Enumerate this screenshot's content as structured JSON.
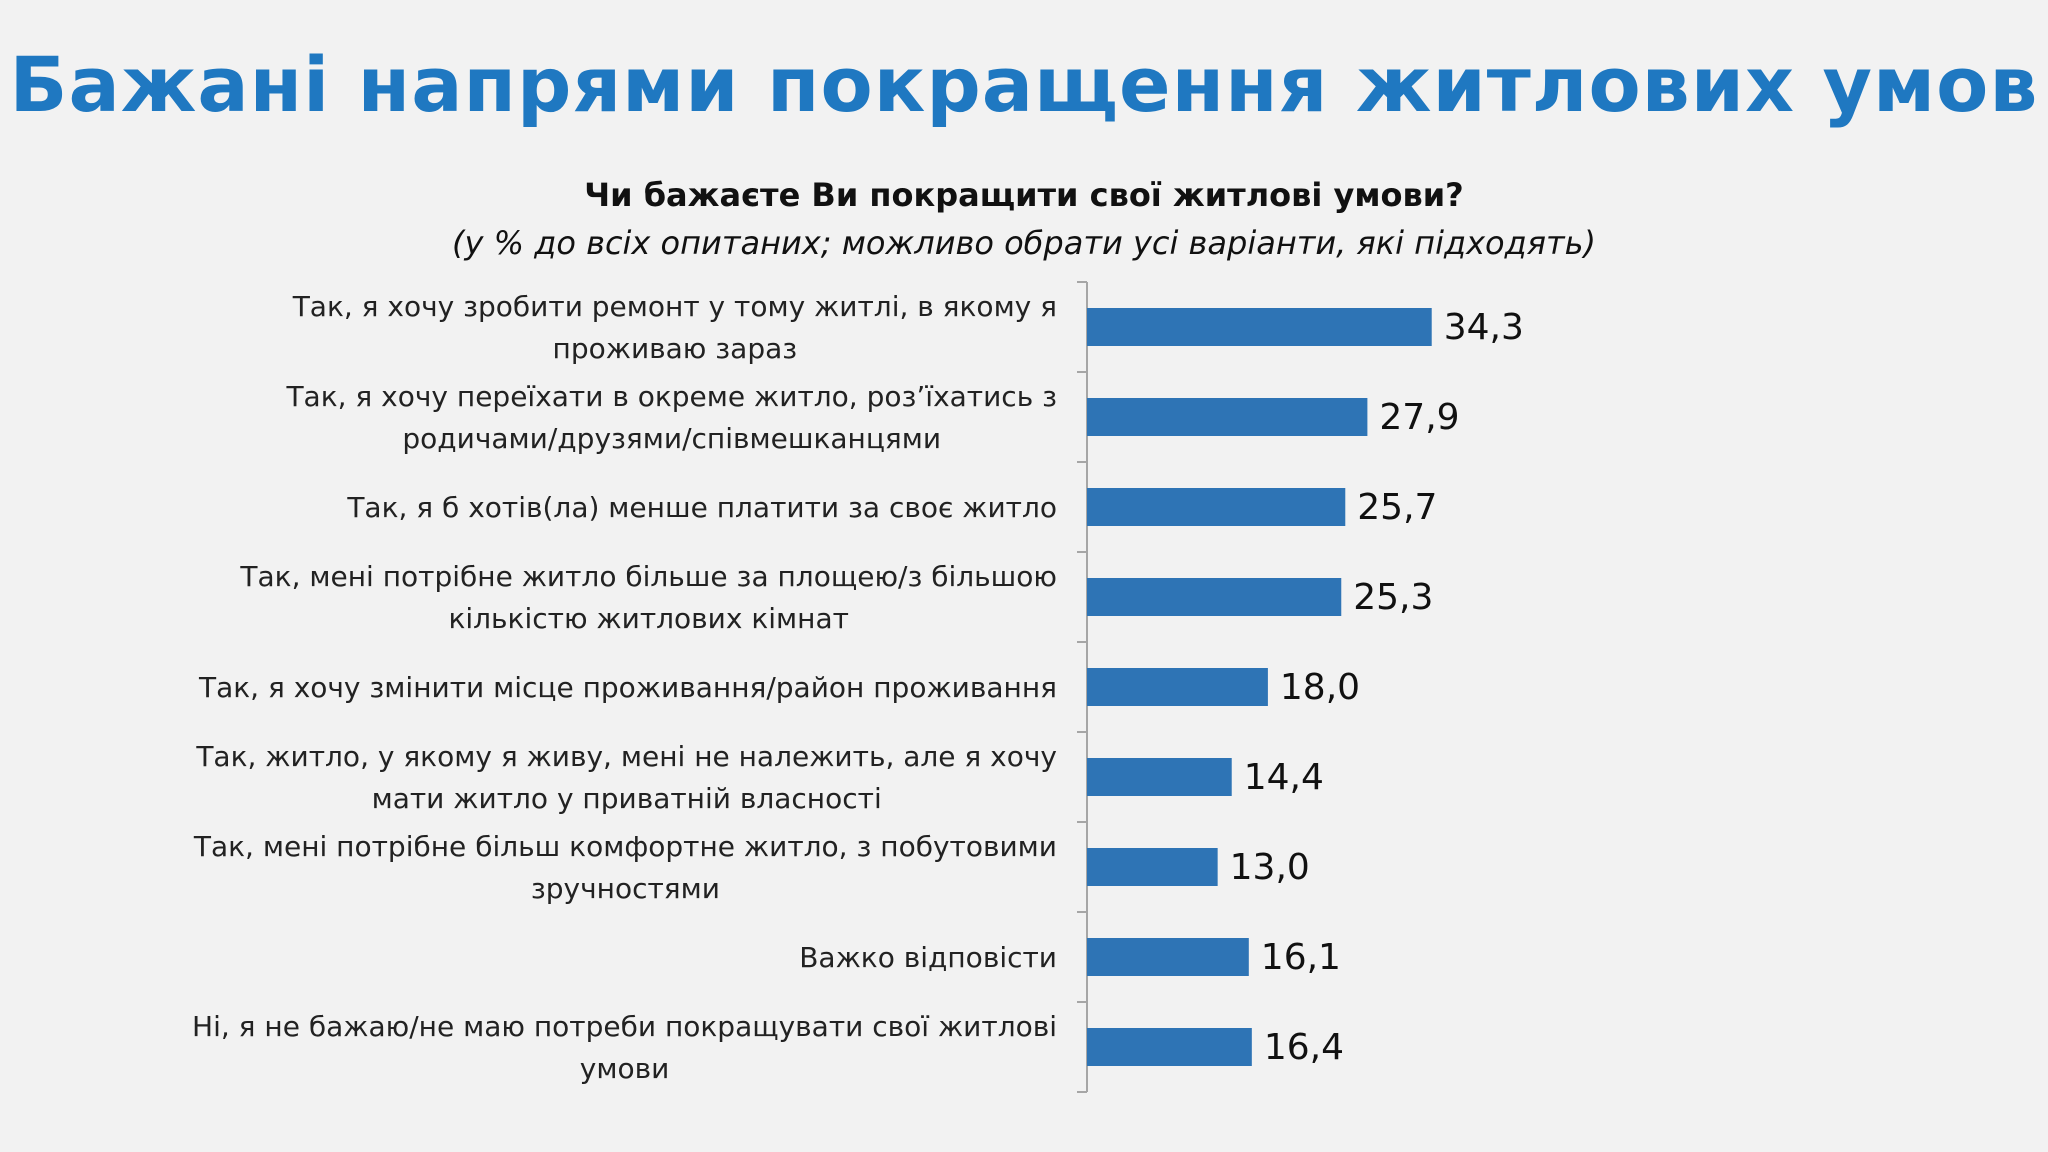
{
  "slide": {
    "title": "Бажані напрями покращення житлових умов"
  },
  "colors": {
    "title": "#1f78c1",
    "bar": "#2e74b5",
    "axis": "#a6a6a6"
  },
  "chart_data": {
    "type": "bar",
    "orientation": "horizontal",
    "title": "Чи бажаєте Ви покращити свої житлові умови?",
    "subtitle": "(у % до всіх опитаних; можливо обрати усі варіанти, які підходять)",
    "xlabel": "",
    "ylabel": "",
    "xlim": [
      0,
      40
    ],
    "grid": false,
    "categories": [
      [
        "Так, я хочу зробити ремонт у тому житлі, в якому я",
        "проживаю зараз"
      ],
      [
        "Так, я хочу переїхати в окреме житло, роз’їхатись з",
        "родичами/друзями/співмешканцями"
      ],
      [
        "Так, я б хотів(ла) менше платити за своє житло"
      ],
      [
        "Так, мені потрібне житло більше за площею/з більшою",
        "кількістю житлових кімнат"
      ],
      [
        "Так, я хочу змінити місце проживання/район проживання"
      ],
      [
        "Так, житло, у якому я живу, мені не належить, але я хочу",
        "мати житло у приватній власності"
      ],
      [
        "Так, мені потрібне більш комфортне житло, з побутовими",
        "зручностями"
      ],
      [
        "Важко відповісти"
      ],
      [
        "Ні, я не бажаю/не маю потреби покращувати свої житлові",
        "умови"
      ]
    ],
    "values": [
      34.3,
      27.9,
      25.7,
      25.3,
      18.0,
      14.4,
      13.0,
      16.1,
      16.4
    ],
    "value_labels": [
      "34,3",
      "27,9",
      "25,7",
      "25,3",
      "18,0",
      "14,4",
      "13,0",
      "16,1",
      "16,4"
    ]
  }
}
